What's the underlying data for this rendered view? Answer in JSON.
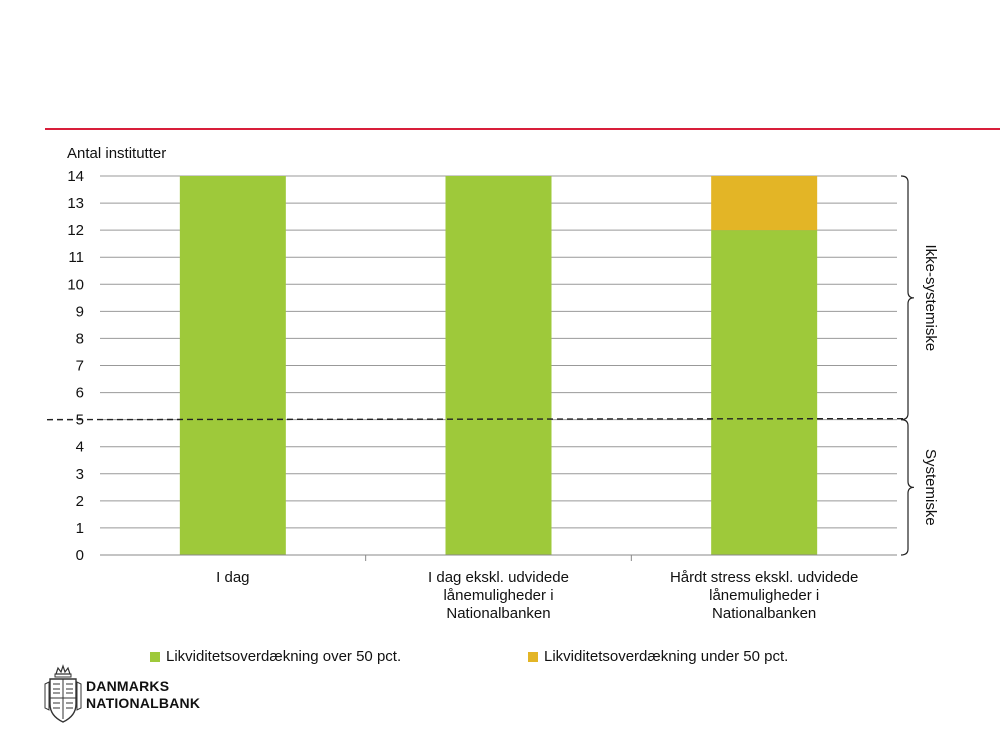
{
  "chart_data": {
    "type": "bar",
    "stacked": true,
    "ylabel": "Antal institutter",
    "ylim": [
      0,
      14
    ],
    "yticks": [
      0,
      1,
      2,
      3,
      4,
      5,
      6,
      7,
      8,
      9,
      10,
      11,
      12,
      13,
      14
    ],
    "grid": true,
    "categories": [
      [
        "I dag"
      ],
      [
        "I dag ekskl. udvidede",
        "lånemuligheder i",
        "Nationalbanken"
      ],
      [
        "Hårdt stress ekskl. udvidede",
        "lånemuligheder i",
        "Nationalbanken"
      ]
    ],
    "series": [
      {
        "name": "Likviditetsoverdækning over 50 pct.",
        "values": [
          14,
          14,
          12
        ],
        "color": "#9ec93a"
      },
      {
        "name": "Likviditetsoverdækning under 50 pct.",
        "values": [
          0,
          0,
          2
        ],
        "color": "#e3b526"
      }
    ],
    "reference_line": {
      "y": 5,
      "style": "dashed"
    },
    "brackets": [
      {
        "label": "Ikke-systemiske",
        "from": 5,
        "to": 14
      },
      {
        "label": "Systemiske",
        "from": 0,
        "to": 5
      }
    ],
    "legend_position": "bottom"
  },
  "logo": {
    "line1": "DANMARKS",
    "line2": "NATIONALBANK"
  }
}
